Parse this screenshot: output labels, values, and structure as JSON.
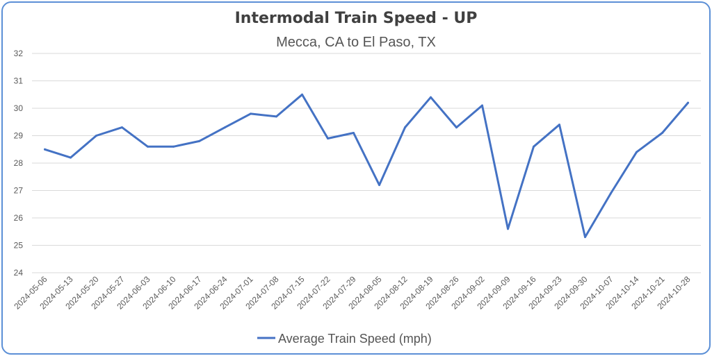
{
  "chart_data": {
    "type": "line",
    "title": "Intermodal Train Speed - UP",
    "subtitle": "Mecca, CA to El Paso, TX",
    "xlabel": "",
    "ylabel": "",
    "ylim": [
      24,
      32
    ],
    "yticks": [
      "24",
      "25",
      "26",
      "27",
      "28",
      "29",
      "30",
      "31",
      "32"
    ],
    "grid": true,
    "legend_position": "bottom",
    "x": [
      "2024-05-06",
      "2024-05-13",
      "2024-05-20",
      "2024-05-27",
      "2024-06-03",
      "2024-06-10",
      "2024-06-17",
      "2024-06-24",
      "2024-07-01",
      "2024-07-08",
      "2024-07-15",
      "2024-07-22",
      "2024-07-29",
      "2024-08-05",
      "2024-08-12",
      "2024-08-19",
      "2024-08-26",
      "2024-09-02",
      "2024-09-09",
      "2024-09-16",
      "2024-09-23",
      "2024-09-30",
      "2024-10-07",
      "2024-10-14",
      "2024-10-21",
      "2024-10-28"
    ],
    "series": [
      {
        "name": "Average Train Speed (mph)",
        "color": "#4472c4",
        "values": [
          28.5,
          28.2,
          29.0,
          29.3,
          28.6,
          28.6,
          28.8,
          29.3,
          29.8,
          29.7,
          30.5,
          28.9,
          29.1,
          27.2,
          29.3,
          30.4,
          29.3,
          30.1,
          25.6,
          28.6,
          29.4,
          25.3,
          26.9,
          28.4,
          29.1,
          30.2
        ]
      }
    ]
  }
}
